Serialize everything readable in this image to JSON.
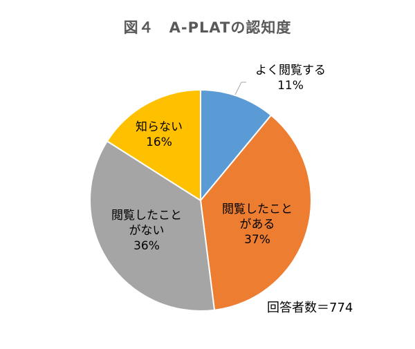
{
  "chart_data": {
    "type": "pie",
    "title": "図４　A-PLATの認知度",
    "slices": [
      {
        "label_lines": [
          "よく閲覧する"
        ],
        "percent_label": "11%",
        "value": 11,
        "color": "#5B9BD5"
      },
      {
        "label_lines": [
          "閲覧したこと",
          "がある"
        ],
        "percent_label": "37%",
        "value": 37,
        "color": "#ED7D31"
      },
      {
        "label_lines": [
          "閲覧したこと",
          "がない"
        ],
        "percent_label": "36%",
        "value": 36,
        "color": "#A5A5A5"
      },
      {
        "label_lines": [
          "知らない"
        ],
        "percent_label": "16%",
        "value": 16,
        "color": "#FFC000"
      }
    ],
    "note": "回答者数＝774"
  }
}
